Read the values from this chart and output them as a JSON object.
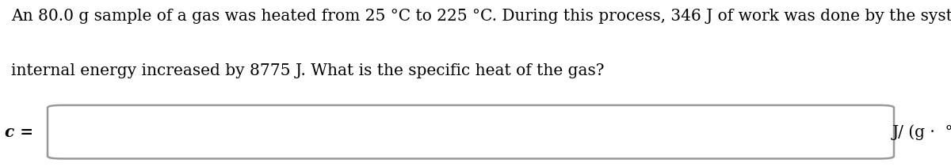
{
  "line1": "An 80.0 g sample of a gas was heated from 25 °C to 225 °C. During this process, 346 J of work was done by the system and its",
  "line2": "internal energy increased by 8775 J. What is the specific heat of the gas?",
  "label_c": "c =",
  "unit_text": "J/ (g ·  °C)",
  "text_color": "#000000",
  "bg_color": "#ffffff",
  "box_fill": "#ffffff",
  "box_edge": "#999999",
  "font_size_body": 14.5,
  "font_size_label": 14.5,
  "font_size_unit": 14.5
}
